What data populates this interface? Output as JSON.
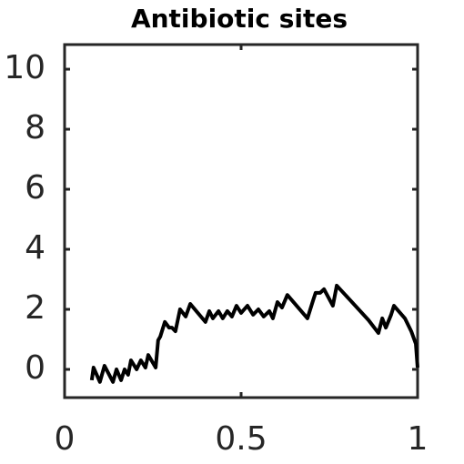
{
  "chart_data": {
    "type": "line",
    "title": "Antibiotic sites",
    "x": [
      0.077,
      0.082,
      0.1,
      0.113,
      0.137,
      0.147,
      0.16,
      0.17,
      0.18,
      0.188,
      0.204,
      0.216,
      0.229,
      0.237,
      0.258,
      0.265,
      0.271,
      0.284,
      0.296,
      0.304,
      0.314,
      0.327,
      0.343,
      0.356,
      0.399,
      0.41,
      0.42,
      0.436,
      0.448,
      0.461,
      0.474,
      0.487,
      0.5,
      0.518,
      0.534,
      0.549,
      0.564,
      0.58,
      0.59,
      0.603,
      0.616,
      0.631,
      0.688,
      0.704,
      0.711,
      0.724,
      0.735,
      0.76,
      0.771,
      0.861,
      0.889,
      0.9,
      0.91,
      0.925,
      0.933,
      0.964,
      0.982,
      0.995,
      1.0
    ],
    "values": [
      -0.36,
      0.06,
      -0.42,
      0.12,
      -0.42,
      0.0,
      -0.36,
      0.0,
      -0.18,
      0.3,
      0.0,
      0.3,
      0.06,
      0.48,
      0.06,
      0.97,
      1.09,
      1.58,
      1.39,
      1.39,
      1.27,
      2.0,
      1.76,
      2.18,
      1.58,
      1.94,
      1.7,
      1.94,
      1.7,
      1.94,
      1.76,
      2.12,
      1.88,
      2.12,
      1.82,
      2.0,
      1.76,
      1.94,
      1.7,
      2.24,
      2.06,
      2.48,
      1.7,
      2.3,
      2.55,
      2.55,
      2.67,
      2.12,
      2.79,
      1.64,
      1.21,
      1.7,
      1.39,
      1.82,
      2.12,
      1.7,
      1.27,
      0.85,
      0.06
    ],
    "color": "#000000",
    "xlim": [
      0,
      1
    ],
    "xticks": [
      0,
      0.5,
      1
    ],
    "ylim": [
      -0.94,
      10.82
    ],
    "yticks": [
      0,
      2,
      4,
      6,
      8,
      10
    ]
  }
}
